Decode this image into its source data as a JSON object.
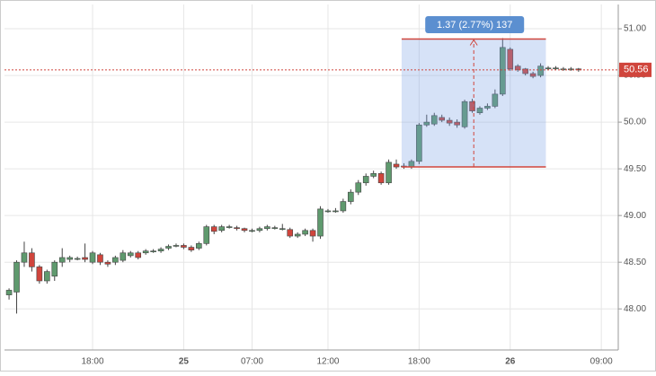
{
  "chart_data": {
    "type": "candlestick",
    "categories": [
      null,
      null,
      null,
      null,
      null,
      null,
      null,
      null,
      null,
      null,
      null,
      "18:00",
      null,
      null,
      null,
      null,
      null,
      null,
      null,
      null,
      null,
      null,
      null,
      "25",
      null,
      null,
      null,
      null,
      null,
      null,
      null,
      null,
      "07:00",
      null,
      null,
      null,
      null,
      null,
      null,
      null,
      null,
      null,
      "12:00",
      null,
      null,
      null,
      null,
      null,
      null,
      null,
      null,
      null,
      null,
      null,
      "18:00",
      null,
      null,
      null,
      null,
      null,
      null,
      null,
      null,
      null,
      null,
      null,
      "26",
      null,
      null,
      null,
      null,
      null,
      null,
      null,
      null,
      null,
      null,
      null,
      "09:00",
      null
    ],
    "open": [
      48.15,
      48.18,
      48.5,
      48.6,
      48.45,
      48.3,
      48.35,
      48.5,
      48.53,
      48.54,
      48.55,
      48.5,
      48.58,
      48.5,
      48.5,
      48.52,
      48.57,
      48.6,
      48.6,
      48.62,
      48.62,
      48.65,
      48.68,
      48.68,
      48.66,
      48.65,
      48.7,
      48.88,
      48.84,
      48.88,
      48.87,
      48.86,
      48.84,
      48.84,
      48.86,
      48.87,
      48.86,
      48.85,
      48.78,
      48.8,
      48.84,
      48.78,
      49.05,
      49.05,
      49.05,
      49.15,
      49.25,
      49.35,
      49.42,
      49.45,
      49.35,
      49.55,
      49.53,
      49.52,
      49.58,
      49.97,
      49.98,
      50.05,
      50.02,
      50.0,
      49.95,
      50.22,
      50.1,
      50.15,
      50.17,
      50.3,
      50.78,
      50.6,
      50.57,
      50.52,
      50.5,
      50.58,
      50.58,
      50.57,
      50.57,
      50.57,
      null,
      null,
      null,
      null
    ],
    "high": [
      48.22,
      48.52,
      48.72,
      48.65,
      48.47,
      48.42,
      48.52,
      48.65,
      48.57,
      48.56,
      48.7,
      48.62,
      48.6,
      48.52,
      48.57,
      48.63,
      48.62,
      48.62,
      48.64,
      48.64,
      48.66,
      48.69,
      48.7,
      48.7,
      48.68,
      48.72,
      48.9,
      48.9,
      48.9,
      48.9,
      48.89,
      48.87,
      48.86,
      48.88,
      48.9,
      48.89,
      48.91,
      48.87,
      48.82,
      48.86,
      48.86,
      49.1,
      49.07,
      49.08,
      49.18,
      49.28,
      49.38,
      49.45,
      49.48,
      49.47,
      49.6,
      49.6,
      49.56,
      49.6,
      49.99,
      50.08,
      50.1,
      50.08,
      50.05,
      50.03,
      50.24,
      50.25,
      50.17,
      50.2,
      50.35,
      50.9,
      50.8,
      50.62,
      50.58,
      50.54,
      50.63,
      50.6,
      50.6,
      50.59,
      50.59,
      50.58,
      null,
      null,
      null,
      null
    ],
    "low": [
      48.1,
      47.95,
      48.45,
      48.4,
      48.27,
      48.27,
      48.3,
      48.45,
      48.5,
      48.52,
      48.5,
      48.48,
      48.47,
      48.45,
      48.47,
      48.5,
      48.55,
      48.53,
      48.58,
      48.6,
      48.6,
      48.63,
      48.66,
      48.64,
      48.61,
      48.63,
      48.68,
      48.8,
      48.82,
      48.86,
      48.84,
      48.82,
      48.82,
      48.82,
      48.84,
      48.85,
      48.84,
      48.76,
      48.76,
      48.78,
      48.72,
      48.75,
      49.03,
      49.03,
      49.03,
      49.12,
      49.22,
      49.32,
      49.4,
      49.33,
      49.33,
      49.5,
      49.5,
      49.5,
      49.55,
      49.95,
      49.96,
      50.0,
      49.96,
      49.94,
      49.93,
      50.1,
      50.08,
      50.13,
      50.15,
      50.28,
      50.55,
      50.54,
      50.5,
      50.47,
      50.48,
      50.56,
      50.56,
      50.55,
      50.55,
      50.54,
      null,
      null,
      null,
      null
    ],
    "close": [
      48.2,
      48.5,
      48.6,
      48.45,
      48.3,
      48.4,
      48.5,
      48.55,
      48.55,
      48.54,
      48.53,
      48.6,
      48.5,
      48.48,
      48.55,
      48.6,
      48.6,
      48.55,
      48.62,
      48.62,
      48.64,
      48.67,
      48.68,
      48.66,
      48.63,
      48.7,
      48.88,
      48.83,
      48.88,
      48.88,
      48.86,
      48.84,
      48.84,
      48.86,
      48.88,
      48.87,
      48.86,
      48.78,
      48.8,
      48.84,
      48.78,
      49.07,
      49.05,
      49.05,
      49.15,
      49.25,
      49.35,
      49.42,
      49.45,
      49.35,
      49.57,
      49.52,
      49.52,
      49.58,
      49.97,
      50.0,
      50.07,
      50.02,
      49.99,
      49.97,
      50.22,
      50.12,
      50.15,
      50.17,
      50.3,
      50.8,
      50.57,
      50.56,
      50.52,
      50.49,
      50.6,
      50.58,
      50.58,
      50.57,
      50.57,
      50.56,
      null,
      null,
      null,
      null
    ],
    "up_color": "#5f9a6e",
    "down_color": "#d0453c",
    "ylim": [
      47.56,
      51.26
    ],
    "yticks": [
      {
        "value": 48,
        "label": "48.00"
      },
      {
        "value": 48.5,
        "label": "48.50"
      },
      {
        "value": 49,
        "label": "49.00"
      },
      {
        "value": 49.5,
        "label": "49.50"
      },
      {
        "value": 50,
        "label": "50.00"
      },
      {
        "value": 50.5,
        "label": "50.50"
      },
      {
        "value": 51,
        "label": "51.00"
      }
    ],
    "grid": true,
    "last_price": 50.56,
    "measure": {
      "label": "1.37 (2.77%) 137",
      "low": 49.52,
      "high": 50.89
    }
  }
}
